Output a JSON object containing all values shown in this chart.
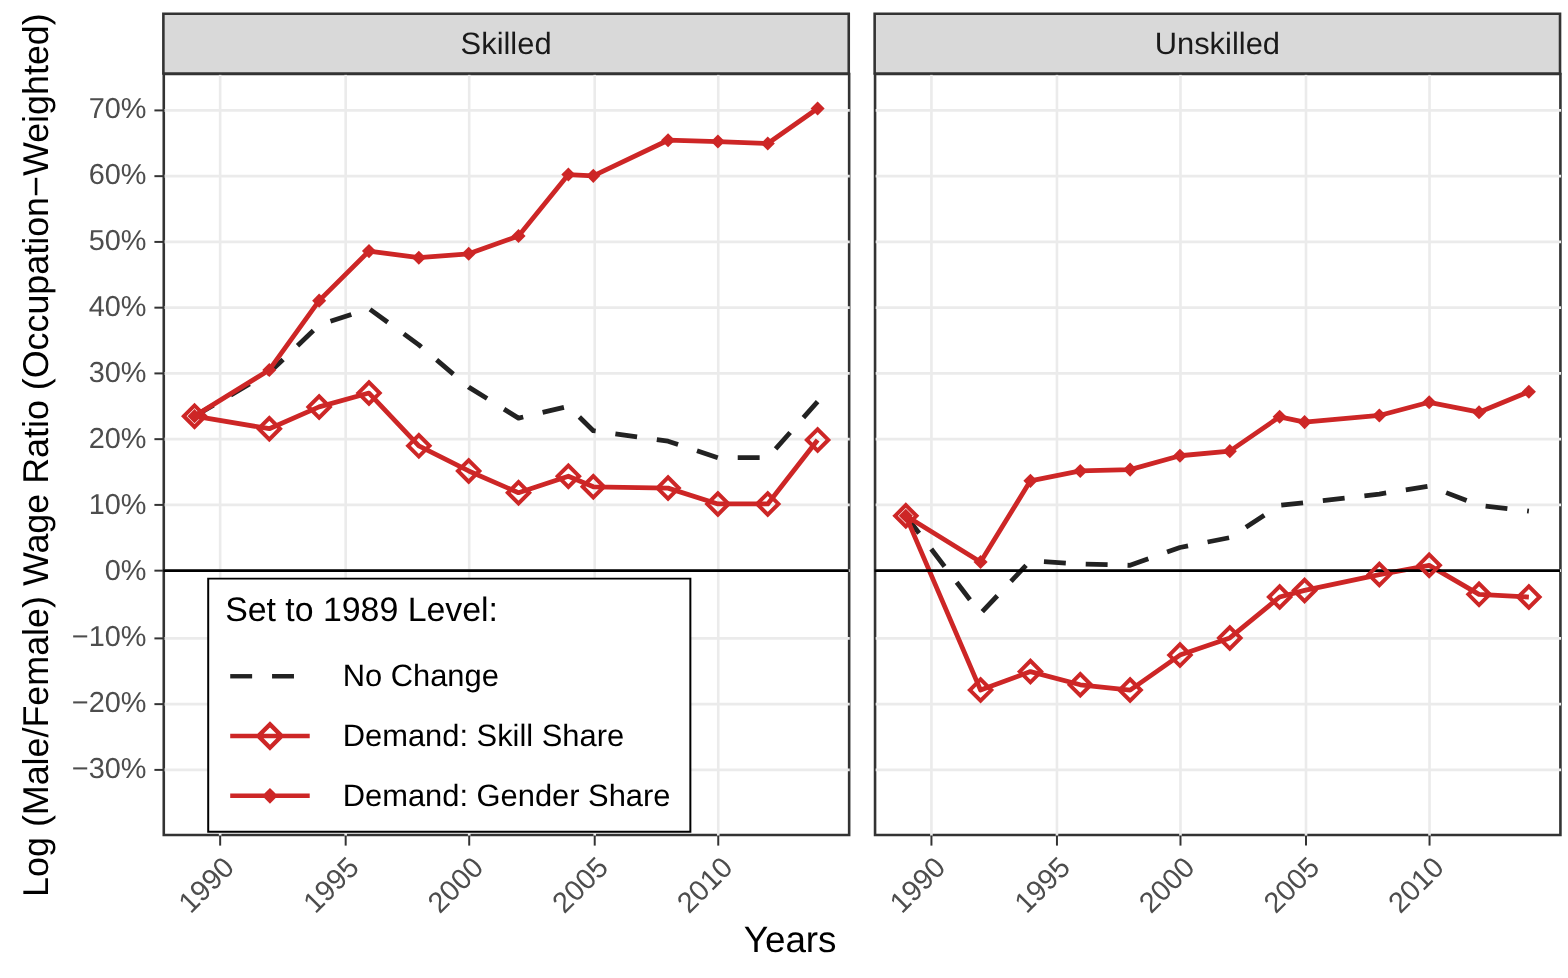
{
  "chart_data": [
    {
      "type": "line",
      "title": "Skilled",
      "xlabel": "Years",
      "ylabel": "Log (Male/Female) Wage Ratio (Occupation−Weighted)",
      "legend_title": "Set to 1989 Level:",
      "x": [
        1989,
        1992,
        1994,
        1996,
        1998,
        2000,
        2002,
        2004,
        2005,
        2008,
        2010,
        2012,
        2014
      ],
      "series": [
        {
          "name": "No Change",
          "color": "#222222",
          "line_style": "dashed",
          "marker": "none",
          "values": [
            23.4,
            30.0,
            37.2,
            39.7,
            34.2,
            27.8,
            23.1,
            24.9,
            21.2,
            19.6,
            17.1,
            17.1,
            25.6
          ]
        },
        {
          "name": "Demand: Skill Share",
          "color": "#cd2626",
          "line_style": "solid",
          "marker": "diamond",
          "values": [
            23.4,
            21.5,
            24.8,
            26.9,
            18.9,
            15.1,
            11.8,
            14.3,
            12.7,
            12.5,
            10.1,
            10.1,
            19.8
          ]
        },
        {
          "name": "Demand: Gender Share",
          "color": "#cd2626",
          "line_style": "solid",
          "marker": "diamond",
          "values": [
            23.4,
            30.4,
            40.9,
            48.4,
            47.4,
            48.0,
            50.7,
            60.0,
            59.8,
            65.2,
            65.0,
            64.7,
            70.0
          ]
        }
      ],
      "xlim": [
        1987.75,
        2015.25
      ],
      "xticks": [
        1990,
        1995,
        2000,
        2005,
        2010
      ],
      "ylim": [
        -40,
        75.3
      ],
      "yticks": [
        {
          "value": -30,
          "label": "−30%"
        },
        {
          "value": -20,
          "label": "−20%"
        },
        {
          "value": -10,
          "label": "−10%"
        },
        {
          "value": 0,
          "label": "0%"
        },
        {
          "value": 10,
          "label": "10%"
        },
        {
          "value": 20,
          "label": "20%"
        },
        {
          "value": 30,
          "label": "30%"
        },
        {
          "value": 40,
          "label": "40%"
        },
        {
          "value": 50,
          "label": "50%"
        },
        {
          "value": 60,
          "label": "60%"
        },
        {
          "value": 70,
          "label": "70%"
        }
      ],
      "grid": true,
      "legend": "bottom left",
      "ref_lines": [
        {
          "axis": "y",
          "value": 0,
          "color": "#000000"
        }
      ]
    },
    {
      "type": "line",
      "title": "Unskilled",
      "x": [
        1989,
        1992,
        1994,
        1996,
        1998,
        2000,
        2002,
        2004,
        2005,
        2008,
        2010,
        2012,
        2014
      ],
      "series": [
        {
          "color": "#222222",
          "line_style": "dashed",
          "marker": "none",
          "values": [
            8.3,
            -6.5,
            1.5,
            1.0,
            0.8,
            3.5,
            5.0,
            9.9,
            10.3,
            11.6,
            12.8,
            9.9,
            9.0
          ]
        },
        {
          "color": "#cd2626",
          "line_style": "solid",
          "marker": "diamond",
          "values": [
            8.3,
            -18.1,
            -15.3,
            -17.3,
            -18.1,
            -12.8,
            -10.2,
            -4.0,
            -3.0,
            -0.6,
            0.8,
            -3.6,
            -4.0
          ]
        },
        {
          "color": "#cd2626",
          "line_style": "solid",
          "marker": "diamond",
          "values": [
            8.3,
            1.3,
            13.6,
            15.1,
            15.3,
            17.4,
            18.1,
            23.3,
            22.5,
            23.5,
            25.5,
            24.0,
            27.1
          ]
        }
      ],
      "xlim": [
        1987.75,
        2015.25
      ],
      "xticks": [
        1990,
        1995,
        2000,
        2005,
        2010
      ],
      "ylim": [
        -40,
        75.3
      ],
      "yticks": [
        -30,
        -20,
        -10,
        0,
        10,
        20,
        30,
        40,
        50,
        60,
        70
      ],
      "grid": true,
      "legend": false,
      "tick_labels": "x",
      "ref_lines": [
        {
          "axis": "y",
          "value": 0,
          "color": "#000000"
        }
      ]
    }
  ]
}
